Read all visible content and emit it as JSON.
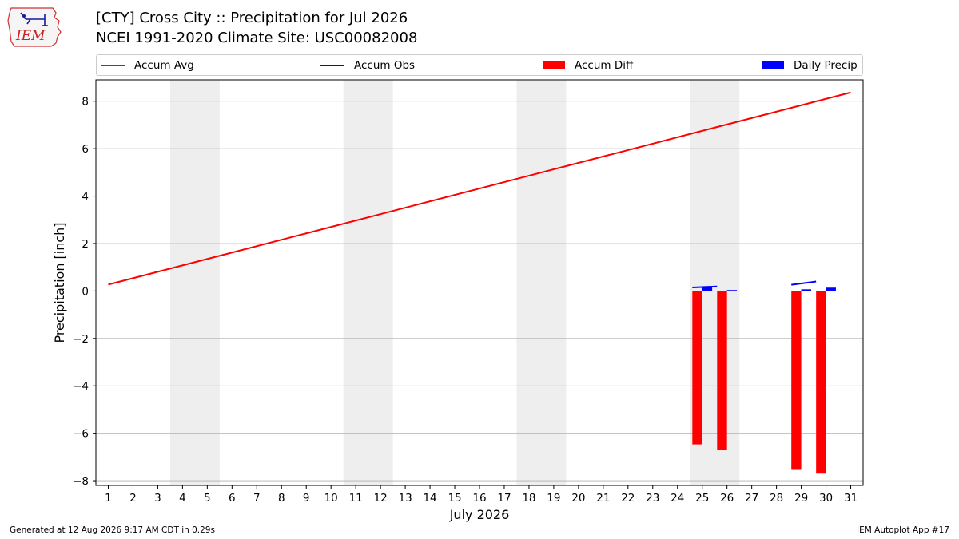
{
  "logo": {
    "text": "IEM"
  },
  "title": {
    "line1": "[CTY] Cross City :: Precipitation for Jul 2026",
    "line2": "NCEI 1991-2020 Climate Site: USC00082008"
  },
  "legend": {
    "items": [
      {
        "label": "Accum Avg",
        "kind": "line",
        "color": "#ff0000"
      },
      {
        "label": "Accum Obs",
        "kind": "line",
        "color": "#0000ff"
      },
      {
        "label": "Accum Diff",
        "kind": "patch",
        "color": "#ff0000"
      },
      {
        "label": "Daily Precip",
        "kind": "patch",
        "color": "#0000ff"
      }
    ]
  },
  "chart_data": {
    "type": "bar",
    "xlabel": "July 2026",
    "ylabel": "Precipitation [inch]",
    "xlim": [
      0.5,
      31.5
    ],
    "ylim": [
      -8.2,
      8.9
    ],
    "x_ticks": [
      1,
      2,
      3,
      4,
      5,
      6,
      7,
      8,
      9,
      10,
      11,
      12,
      13,
      14,
      15,
      16,
      17,
      18,
      19,
      20,
      21,
      22,
      23,
      24,
      25,
      26,
      27,
      28,
      29,
      30,
      31
    ],
    "y_ticks": [
      -8,
      -6,
      -4,
      -2,
      0,
      2,
      4,
      6,
      8
    ],
    "y_tick_labels": [
      "−8",
      "−6",
      "−4",
      "−2",
      "0",
      "2",
      "4",
      "6",
      "8"
    ],
    "grid": "horizontal",
    "weekend_bands": [
      [
        3.5,
        5.5
      ],
      [
        10.5,
        12.5
      ],
      [
        17.5,
        19.5
      ],
      [
        24.5,
        26.5
      ]
    ],
    "weekend_color": "#eeeeee",
    "series": [
      {
        "name": "Accum Avg",
        "type": "line",
        "color": "#ff0000",
        "x": [
          1,
          31
        ],
        "values": [
          0.27,
          8.37
        ]
      },
      {
        "name": "Accum Obs",
        "type": "line-segments",
        "color": "#0000ff",
        "segments": [
          {
            "x": [
              25,
              26
            ],
            "values": [
              0.15,
              0.19
            ]
          },
          {
            "x": [
              29,
              30
            ],
            "values": [
              0.26,
              0.4
            ]
          }
        ]
      },
      {
        "name": "Accum Diff",
        "type": "bar",
        "color": "#ff0000",
        "x": [
          25,
          26,
          29,
          30
        ],
        "values": [
          -6.47,
          -6.7,
          -7.51,
          -7.67
        ]
      },
      {
        "name": "Daily Precip",
        "type": "bar",
        "color": "#0000ff",
        "x": [
          25,
          26,
          29,
          30
        ],
        "values": [
          0.15,
          0.04,
          0.07,
          0.14
        ]
      }
    ]
  },
  "footer": {
    "left": "Generated at 12 Aug 2026 9:17 AM CDT in 0.29s",
    "right": "IEM Autoplot App #17"
  }
}
